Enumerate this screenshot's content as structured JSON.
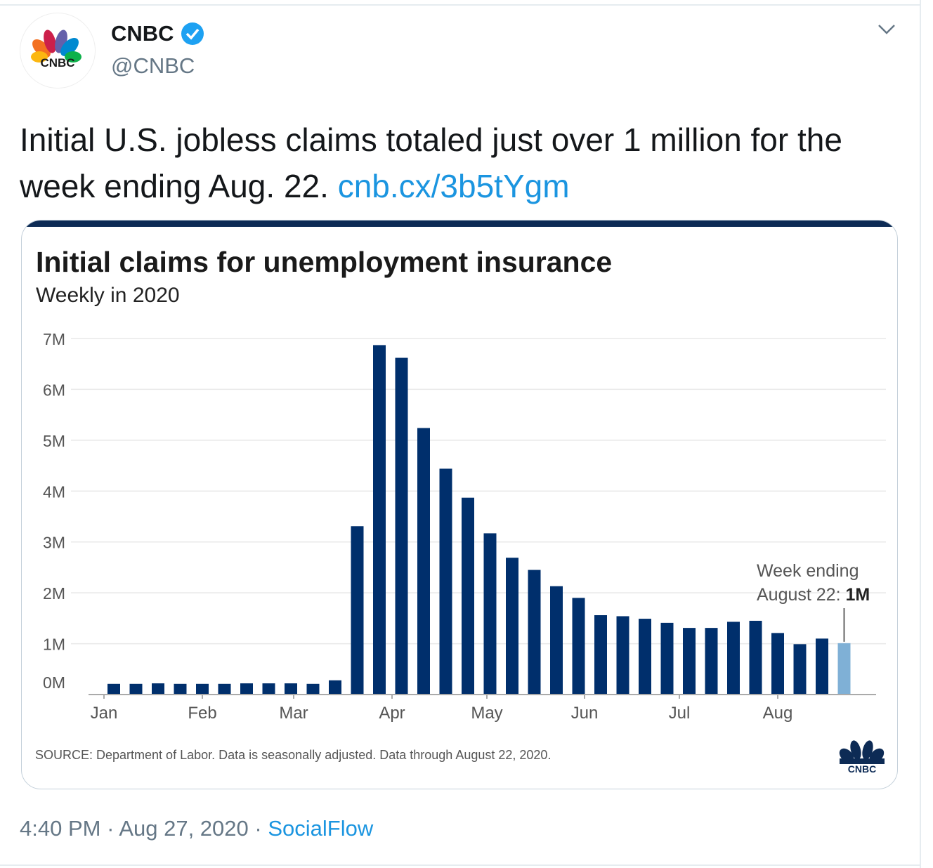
{
  "tweet": {
    "author_name": "CNBC",
    "handle": "@CNBC",
    "verified": true,
    "text": "Initial U.S. jobless claims totaled just over 1 million for the week ending Aug. 22. ",
    "link": "cnb.cx/3b5tYgm",
    "time": "4:40 PM",
    "date": "Aug 27, 2020",
    "source_app": "SocialFlow",
    "separator": "·",
    "avatar_logo_text": "CNBC",
    "icons": {
      "verified": "verified-badge-icon",
      "menu": "chevron-down-icon"
    },
    "colors": {
      "link": "#1b95e0",
      "secondary_text": "#657786"
    }
  },
  "chart_data": {
    "type": "bar",
    "title": "Initial claims for unemployment insurance",
    "subtitle": "Weekly in 2020",
    "source": "SOURCE: Department of Labor. Data is seasonally adjusted. Data through August 22, 2020.",
    "annotation": {
      "line1": "Week ending",
      "line2": "August 22: ",
      "value": "1M"
    },
    "y_ticks": [
      "0M",
      "1M",
      "2M",
      "3M",
      "4M",
      "5M",
      "6M",
      "7M"
    ],
    "ylim": [
      0,
      7
    ],
    "y_unit": "millions",
    "x_ticks": [
      "Jan",
      "Feb",
      "Mar",
      "Apr",
      "May",
      "Jun",
      "Jul",
      "Aug"
    ],
    "grid": true,
    "weeks_ending": [
      "2020-01-04",
      "2020-01-11",
      "2020-01-18",
      "2020-01-25",
      "2020-02-01",
      "2020-02-08",
      "2020-02-15",
      "2020-02-22",
      "2020-02-29",
      "2020-03-07",
      "2020-03-14",
      "2020-03-21",
      "2020-03-28",
      "2020-04-04",
      "2020-04-11",
      "2020-04-18",
      "2020-04-25",
      "2020-05-02",
      "2020-05-09",
      "2020-05-16",
      "2020-05-23",
      "2020-05-30",
      "2020-06-06",
      "2020-06-13",
      "2020-06-20",
      "2020-06-27",
      "2020-07-04",
      "2020-07-11",
      "2020-07-18",
      "2020-07-25",
      "2020-08-01",
      "2020-08-08",
      "2020-08-15",
      "2020-08-22"
    ],
    "values": [
      0.21,
      0.21,
      0.22,
      0.21,
      0.21,
      0.21,
      0.22,
      0.22,
      0.22,
      0.21,
      0.28,
      3.31,
      6.87,
      6.62,
      5.24,
      4.44,
      3.87,
      3.17,
      2.69,
      2.45,
      2.13,
      1.9,
      1.56,
      1.54,
      1.49,
      1.41,
      1.31,
      1.31,
      1.43,
      1.45,
      1.21,
      0.99,
      1.1,
      1.01
    ],
    "colors": {
      "bar": "#002f6c",
      "highlight": "#7fb0d6",
      "band": "#0d2b55"
    },
    "logo_text": "CNBC"
  }
}
